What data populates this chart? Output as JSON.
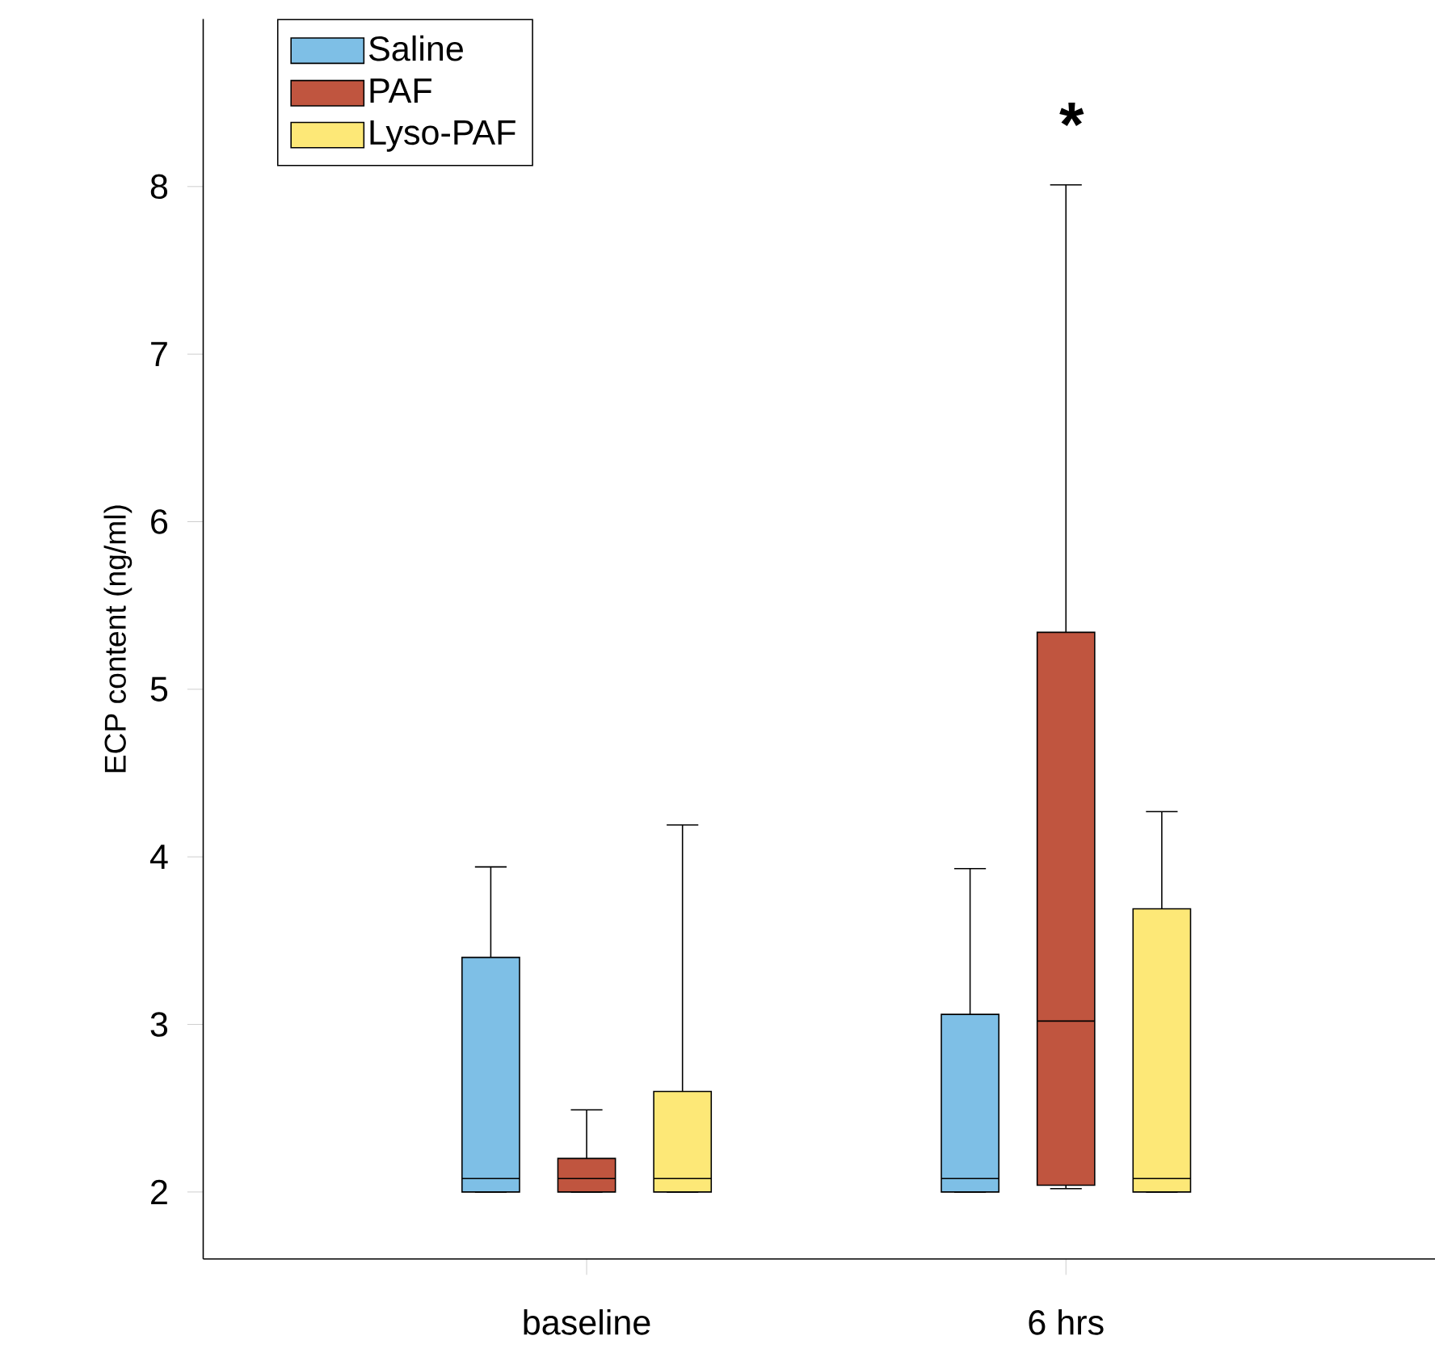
{
  "chart_data": {
    "type": "box",
    "ylabel": "ECP content (ng/ml)",
    "categories": [
      "baseline",
      "6 hrs"
    ],
    "ylim": [
      1.6,
      9.0
    ],
    "yticks": [
      2,
      3,
      4,
      5,
      6,
      7,
      8
    ],
    "legend": "top left",
    "grid": false,
    "series": [
      {
        "name": "Saline",
        "color": "#7ebfe6",
        "boxes": [
          {
            "low": 2.0,
            "q1": 2.0,
            "median": 2.08,
            "q3": 3.4,
            "high": 3.94
          },
          {
            "low": 2.0,
            "q1": 2.0,
            "median": 2.08,
            "q3": 3.06,
            "high": 3.93
          }
        ]
      },
      {
        "name": "PAF",
        "color": "#c0553f",
        "boxes": [
          {
            "low": 2.0,
            "q1": 2.0,
            "median": 2.08,
            "q3": 2.2,
            "high": 2.49
          },
          {
            "low": 2.02,
            "q1": 2.04,
            "median": 3.02,
            "q3": 5.34,
            "high": 8.01
          }
        ]
      },
      {
        "name": "Lyso-PAF",
        "color": "#fde877",
        "boxes": [
          {
            "low": 2.0,
            "q1": 2.0,
            "median": 2.08,
            "q3": 2.6,
            "high": 4.19
          },
          {
            "low": 2.0,
            "q1": 2.0,
            "median": 2.08,
            "q3": 3.69,
            "high": 4.27
          }
        ]
      }
    ],
    "annotations": [
      "*"
    ]
  }
}
